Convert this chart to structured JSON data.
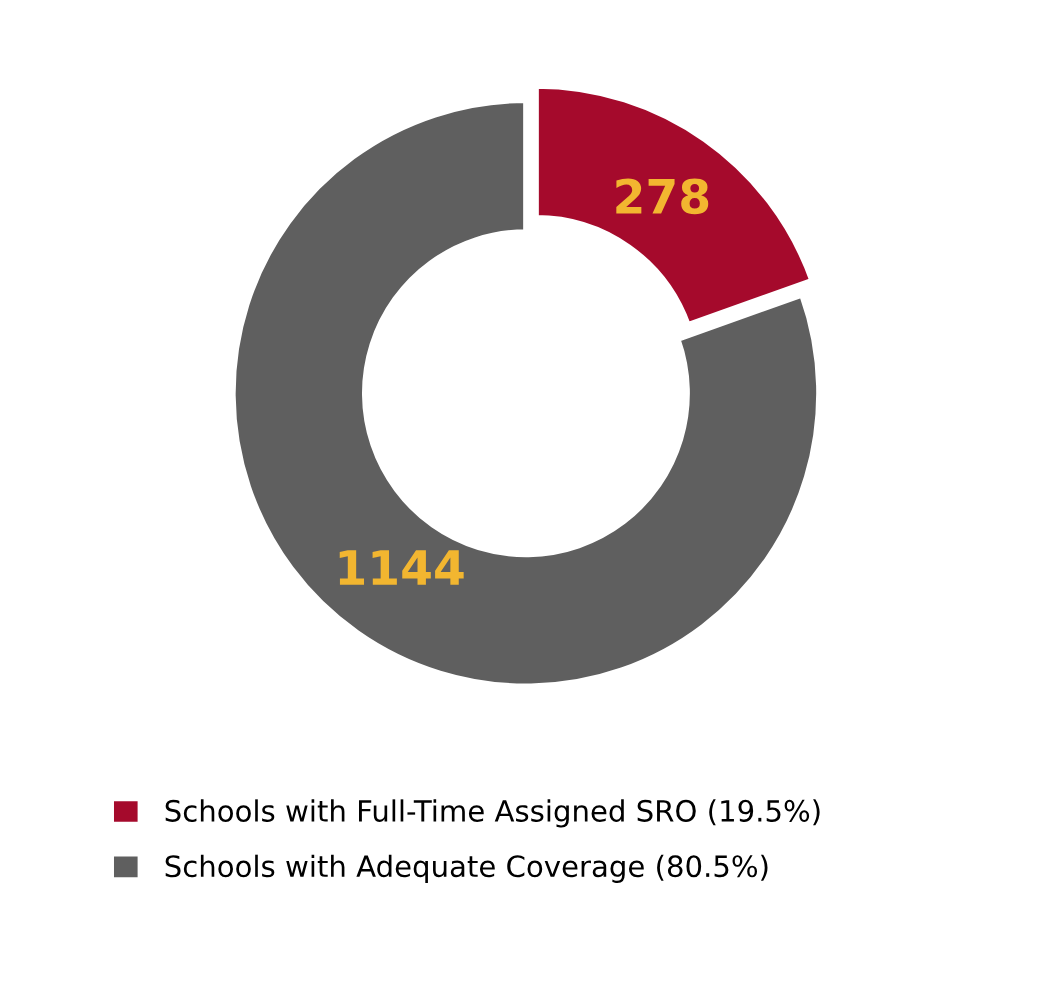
{
  "chart_data": {
    "type": "donut",
    "categories": [
      "Schools with Full-Time Assigned SRO (19.5%)",
      "Schools with Adequate Coverage (80.5%)"
    ],
    "values": [
      278,
      1144
    ],
    "colors": [
      "#a50a2c",
      "#5f5f5f"
    ],
    "data_labels": true,
    "legend": "bottom"
  }
}
